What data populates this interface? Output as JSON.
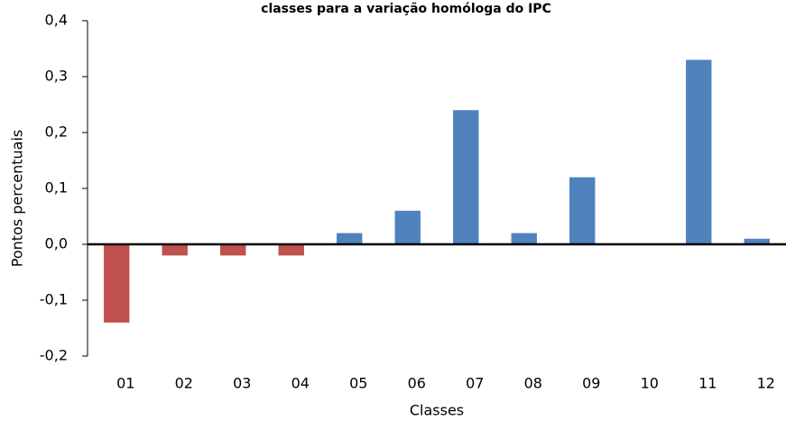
{
  "chart_data": {
    "type": "bar",
    "title": "classes para a variação homóloga do IPC",
    "x_label": "Classes",
    "y_label": "Pontos percentuais",
    "categories": [
      "01",
      "02",
      "03",
      "04",
      "05",
      "06",
      "07",
      "08",
      "09",
      "10",
      "11",
      "12"
    ],
    "values": [
      -0.14,
      -0.02,
      -0.02,
      -0.02,
      0.02,
      0.06,
      0.24,
      0.02,
      0.12,
      0,
      0.33,
      0.01
    ],
    "colors": [
      "#c0504d",
      "#c0504d",
      "#c0504d",
      "#c0504d",
      "#4f81bd",
      "#4f81bd",
      "#4f81bd",
      "#4f81bd",
      "#4f81bd",
      "#4f81bd",
      "#4f81bd",
      "#4f81bd"
    ],
    "ylim": [
      -0.2,
      0.4
    ],
    "yticks": [
      {
        "value": -0.2,
        "label": "-0,2"
      },
      {
        "value": -0.1,
        "label": "-0,1"
      },
      {
        "value": 0,
        "label": "0,0"
      },
      {
        "value": 0.1,
        "label": "0,1"
      },
      {
        "value": 0.2,
        "label": "0,2"
      },
      {
        "value": 0.3,
        "label": "0,3"
      },
      {
        "value": 0.4,
        "label": "0,4"
      }
    ],
    "grid": false
  }
}
